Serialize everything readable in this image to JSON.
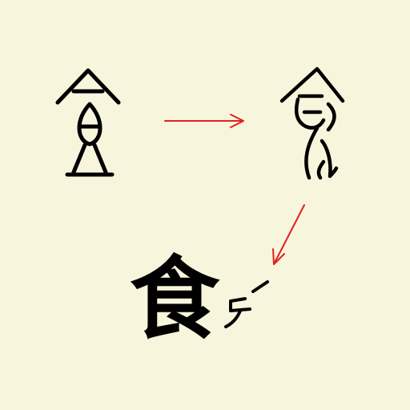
{
  "modern_character": "食",
  "colors": {
    "background": "#f7f5dc",
    "ink": "#000000",
    "arrow": "#e02020"
  }
}
